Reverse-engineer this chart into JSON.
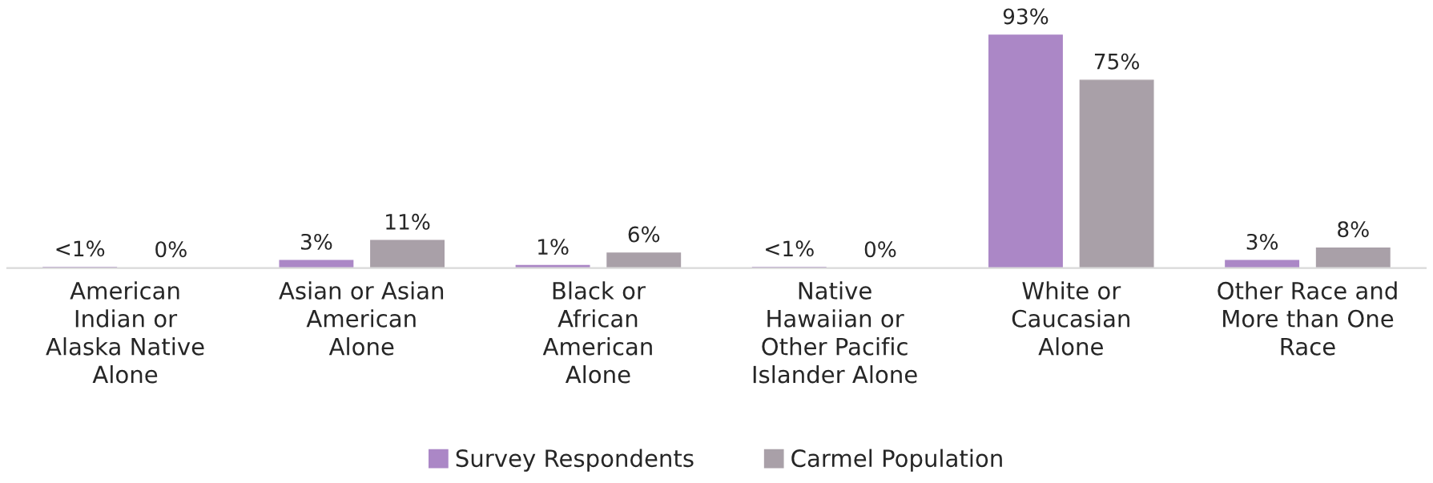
{
  "chart_data": {
    "type": "bar",
    "categories": [
      "American\nIndian or\nAlaska Native\nAlone",
      "Asian or Asian\nAmerican\nAlone",
      "Black or\nAfrican\nAmerican\nAlone",
      "Native\nHawaiian or\nOther Pacific\nIslander Alone",
      "White or\nCaucasian\nAlone",
      "Other Race and\nMore than One\nRace"
    ],
    "series": [
      {
        "name": "Survey Respondents",
        "color": "#ab87c6",
        "values": [
          0.3,
          3,
          1,
          0.3,
          93,
          3
        ],
        "value_labels": [
          "<1%",
          "3%",
          "1%",
          "<1%",
          "93%",
          "3%"
        ]
      },
      {
        "name": "Carmel Population",
        "color": "#a9a0a8",
        "values": [
          0,
          11,
          6,
          0,
          75,
          8
        ],
        "value_labels": [
          "0%",
          "11%",
          "6%",
          "0%",
          "75%",
          "8%"
        ]
      }
    ],
    "legend": "bottom",
    "grid": false
  }
}
